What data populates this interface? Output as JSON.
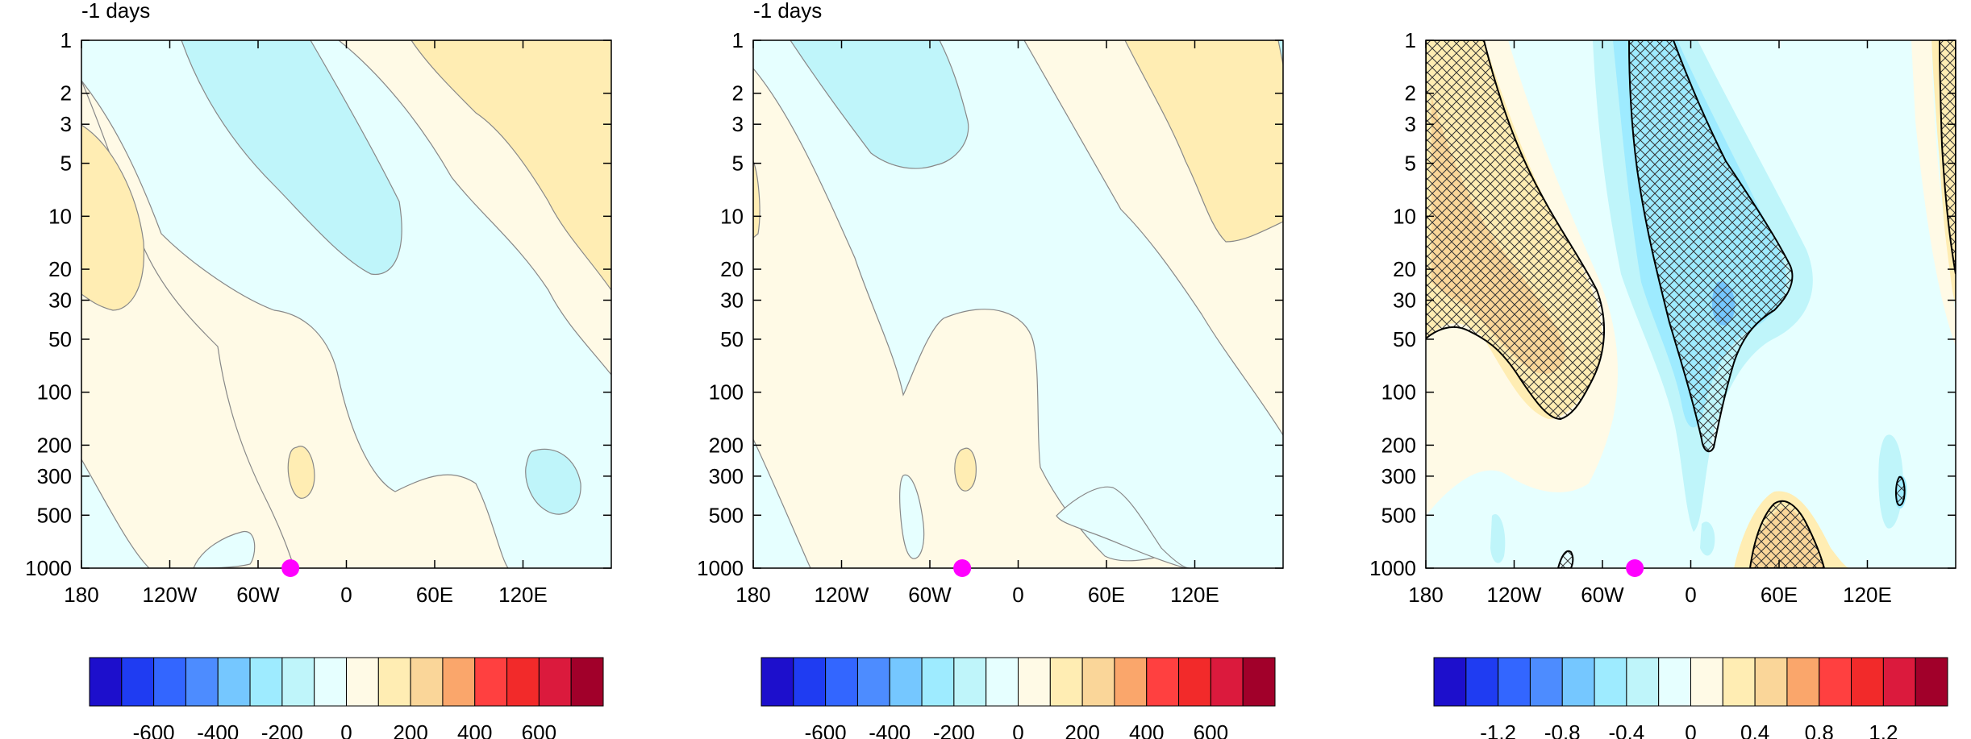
{
  "chart_data": [
    {
      "type": "heatmap",
      "title": "-1 days",
      "x_ticks": [
        "180",
        "120W",
        "60W",
        "0",
        "60E",
        "120E"
      ],
      "y_ticks": [
        "1",
        "2",
        "3",
        "5",
        "10",
        "20",
        "30",
        "50",
        "100",
        "200",
        "300",
        "500",
        "1000"
      ],
      "xlim": [
        -180,
        180
      ],
      "ylim": [
        1000,
        1
      ],
      "y_scale": "log",
      "marker": {
        "x": -38,
        "y": 1000,
        "color": "#ff00ff"
      },
      "colorbar": {
        "labels": [
          "-600",
          "-400",
          "-200",
          "0",
          "200",
          "400",
          "600"
        ],
        "levels": [
          -700,
          -600,
          -500,
          -400,
          -300,
          -200,
          -100,
          0,
          100,
          200,
          300,
          400,
          500,
          600,
          700
        ]
      }
    },
    {
      "type": "heatmap",
      "title": "-1 days",
      "x_ticks": [
        "180",
        "120W",
        "60W",
        "0",
        "60E",
        "120E"
      ],
      "y_ticks": [
        "1",
        "2",
        "3",
        "5",
        "10",
        "20",
        "30",
        "50",
        "100",
        "200",
        "300",
        "500",
        "1000"
      ],
      "xlim": [
        -180,
        180
      ],
      "ylim": [
        1000,
        1
      ],
      "y_scale": "log",
      "marker": {
        "x": -38,
        "y": 1000,
        "color": "#ff00ff"
      },
      "colorbar": {
        "labels": [
          "-600",
          "-400",
          "-200",
          "0",
          "200",
          "400",
          "600"
        ],
        "levels": [
          -700,
          -600,
          -500,
          -400,
          -300,
          -200,
          -100,
          0,
          100,
          200,
          300,
          400,
          500,
          600,
          700
        ]
      }
    },
    {
      "type": "heatmap",
      "title": "",
      "x_ticks": [
        "180",
        "120W",
        "60W",
        "0",
        "60E",
        "120E"
      ],
      "y_ticks": [
        "1",
        "2",
        "3",
        "5",
        "10",
        "20",
        "30",
        "50",
        "100",
        "200",
        "300",
        "500",
        "1000"
      ],
      "xlim": [
        -180,
        180
      ],
      "ylim": [
        1000,
        1
      ],
      "y_scale": "log",
      "hatching": "significance",
      "marker": {
        "x": -38,
        "y": 1000,
        "color": "#ff00ff"
      },
      "colorbar": {
        "labels": [
          "-1.2",
          "-0.8",
          "-0.4",
          "0",
          "0.4",
          "0.8",
          "1.2"
        ],
        "levels": [
          -1.4,
          -1.2,
          -1.0,
          -0.8,
          -0.6,
          -0.4,
          -0.2,
          0,
          0.2,
          0.4,
          0.6,
          0.8,
          1.0,
          1.2,
          1.4
        ]
      }
    }
  ],
  "palette": [
    "#1d0fcc",
    "#1f3cf2",
    "#3366ff",
    "#4d8cff",
    "#75c7ff",
    "#9eebff",
    "#bff5fa",
    "#e6ffff",
    "#fffae6",
    "#ffedb3",
    "#fad699",
    "#faa66b",
    "#ff4040",
    "#f22a2a",
    "#db1a3d",
    "#a1002a"
  ]
}
